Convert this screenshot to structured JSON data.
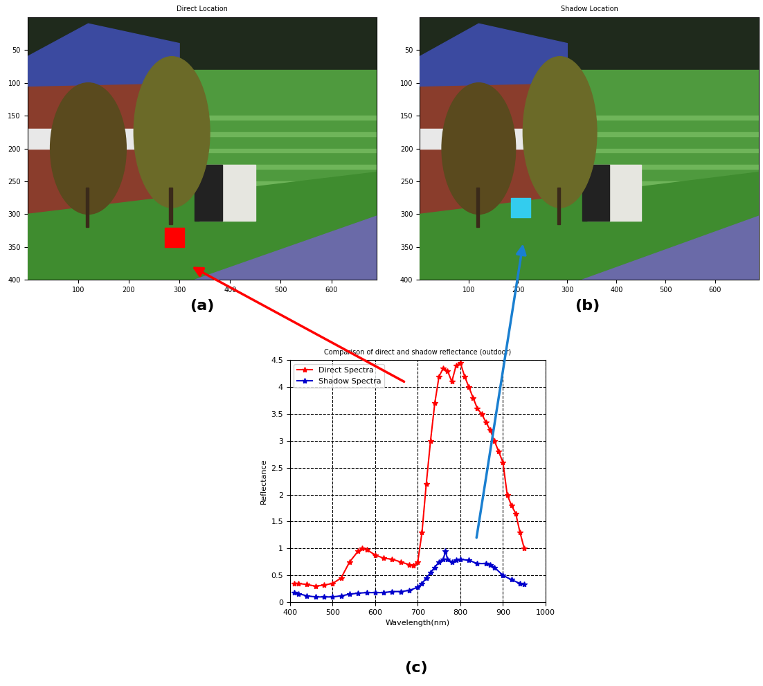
{
  "chart_data": [
    {
      "type": "image",
      "title": "Direct Location",
      "caption": "(a)",
      "xlim": [
        0,
        690
      ],
      "ylim": [
        400,
        0
      ],
      "xticks": [
        100,
        200,
        300,
        400,
        500,
        600
      ],
      "yticks": [
        50,
        100,
        150,
        200,
        250,
        300,
        350,
        400
      ],
      "x": [
        290
      ],
      "values": [
        335
      ],
      "color": "#ff0000",
      "marker": "square"
    },
    {
      "type": "image",
      "title": "Shadow Location",
      "caption": "(b)",
      "xlim": [
        0,
        690
      ],
      "ylim": [
        400,
        0
      ],
      "xticks": [
        100,
        200,
        300,
        400,
        500,
        600
      ],
      "yticks": [
        50,
        100,
        150,
        200,
        250,
        300,
        350,
        400
      ],
      "x": [
        205
      ],
      "values": [
        290
      ],
      "color": "#33ccee",
      "marker": "square"
    },
    {
      "type": "line",
      "title": "Comparison of direct and shadow reflectance (outdoor)",
      "caption": "(c)",
      "x_label": "Wavelength(nm)",
      "y_label": "Reflectance",
      "xlim": [
        400,
        1000
      ],
      "ylim": [
        0,
        4.5
      ],
      "xticks": [
        400,
        500,
        600,
        700,
        800,
        900,
        1000
      ],
      "yticks": [
        0,
        0.5,
        1,
        1.5,
        2,
        2.5,
        3,
        3.5,
        4,
        4.5
      ],
      "grid": true,
      "legend": "upper left",
      "series": [
        {
          "name": "Direct Spectra",
          "color": "#ff0000",
          "marker": "star",
          "line_style": "solid",
          "x": [
            410,
            420,
            440,
            460,
            480,
            500,
            520,
            540,
            560,
            570,
            580,
            600,
            620,
            640,
            660,
            680,
            690,
            700,
            710,
            720,
            730,
            740,
            750,
            760,
            770,
            780,
            790,
            800,
            810,
            820,
            830,
            840,
            850,
            860,
            870,
            880,
            890,
            900,
            910,
            920,
            930,
            940,
            950
          ],
          "values": [
            0.35,
            0.35,
            0.33,
            0.3,
            0.32,
            0.35,
            0.45,
            0.75,
            0.95,
            1.0,
            0.98,
            0.88,
            0.82,
            0.8,
            0.75,
            0.7,
            0.68,
            0.75,
            1.3,
            2.2,
            3.0,
            3.7,
            4.2,
            4.35,
            4.3,
            4.1,
            4.4,
            4.45,
            4.2,
            4.0,
            3.8,
            3.6,
            3.5,
            3.35,
            3.2,
            3.0,
            2.8,
            2.6,
            2.0,
            1.8,
            1.65,
            1.3,
            1.0
          ]
        },
        {
          "name": "Shadow Spectra",
          "color": "#0000cc",
          "marker": "star",
          "line_style": "solid",
          "x": [
            410,
            420,
            440,
            460,
            480,
            500,
            520,
            540,
            560,
            580,
            600,
            620,
            640,
            660,
            680,
            700,
            710,
            720,
            730,
            740,
            750,
            760,
            765,
            770,
            780,
            790,
            800,
            820,
            840,
            860,
            870,
            880,
            900,
            920,
            940,
            950
          ],
          "values": [
            0.18,
            0.16,
            0.12,
            0.1,
            0.1,
            0.1,
            0.12,
            0.15,
            0.17,
            0.18,
            0.18,
            0.18,
            0.2,
            0.2,
            0.22,
            0.28,
            0.35,
            0.45,
            0.55,
            0.65,
            0.75,
            0.8,
            0.95,
            0.8,
            0.75,
            0.78,
            0.8,
            0.78,
            0.72,
            0.72,
            0.7,
            0.65,
            0.5,
            0.42,
            0.35,
            0.33
          ]
        }
      ]
    }
  ]
}
